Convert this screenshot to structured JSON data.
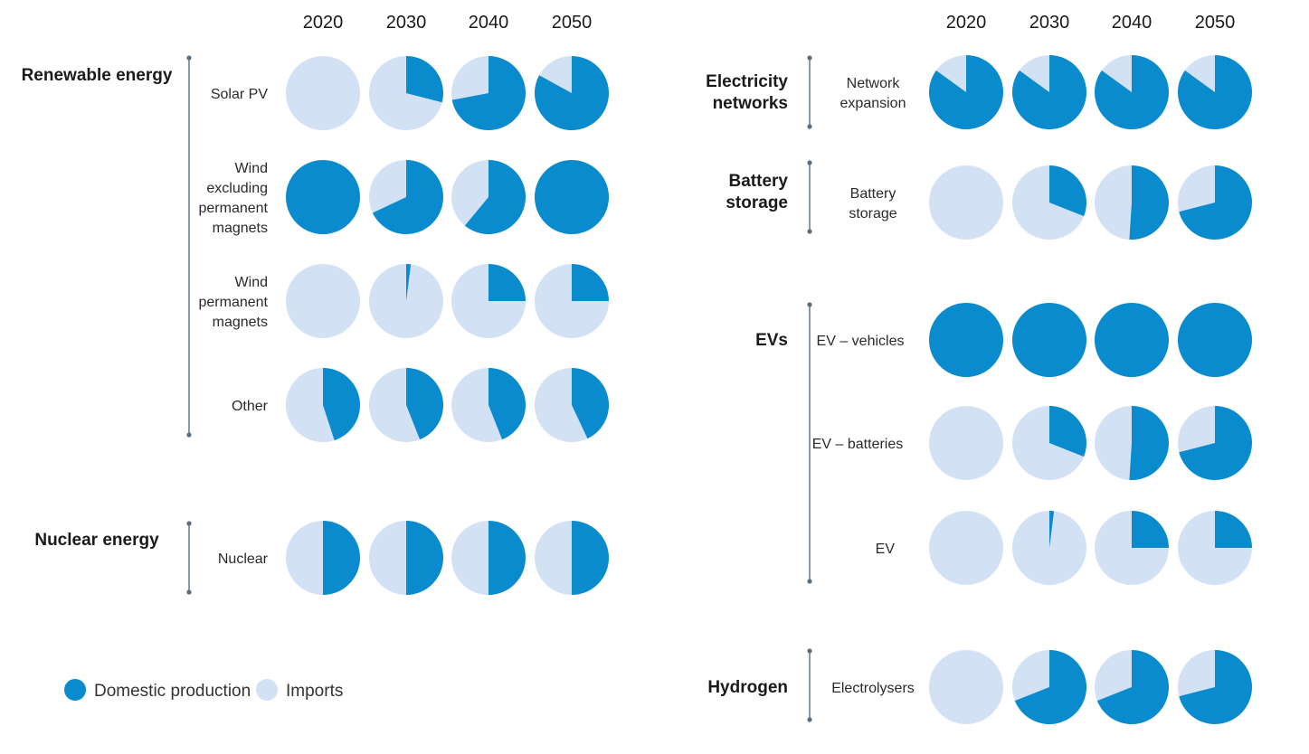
{
  "colors": {
    "domestic": "#0a8bce",
    "imports": "#d2e1f3"
  },
  "legend": [
    {
      "label": "Domestic production",
      "color_key": "domestic"
    },
    {
      "label": "Imports",
      "color_key": "imports"
    }
  ],
  "chart_data": {
    "type": "pie",
    "years": [
      "2020",
      "2030",
      "2040",
      "2050"
    ],
    "value_meaning": "domestic production share of each pie (remainder = imports)",
    "panels": [
      {
        "groups": [
          {
            "title": [
              "Renewable energy"
            ],
            "rows": [
              {
                "label": [
                  "Solar PV"
                ],
                "values": [
                  0,
                  0.29,
                  0.72,
                  0.83
                ]
              },
              {
                "label": [
                  "Wind",
                  "excluding",
                  "permanent",
                  "magnets"
                ],
                "values": [
                  1,
                  0.68,
                  0.61,
                  1
                ]
              },
              {
                "label": [
                  "Wind",
                  "permanent",
                  "magnets"
                ],
                "values": [
                  0,
                  0.02,
                  0.25,
                  0.25
                ]
              },
              {
                "label": [
                  "Other"
                ],
                "values": [
                  0.45,
                  0.44,
                  0.44,
                  0.43
                ]
              }
            ]
          },
          {
            "title": [
              "Nuclear energy"
            ],
            "rows": [
              {
                "label": [
                  "Nuclear"
                ],
                "values": [
                  0.5,
                  0.5,
                  0.5,
                  0.5
                ]
              }
            ]
          }
        ]
      },
      {
        "groups": [
          {
            "title": [
              "Electricity",
              "networks"
            ],
            "rows": [
              {
                "label": [
                  "Network",
                  "expansion"
                ],
                "values": [
                  0.85,
                  0.85,
                  0.85,
                  0.85
                ]
              }
            ]
          },
          {
            "title": [
              "Battery",
              "storage"
            ],
            "rows": [
              {
                "label": [
                  "Battery",
                  "storage"
                ],
                "values": [
                  0,
                  0.31,
                  0.51,
                  0.71
                ]
              }
            ]
          },
          {
            "title": [
              "EVs"
            ],
            "rows": [
              {
                "label": [
                  "EV – vehicles"
                ],
                "values": [
                  1,
                  1,
                  1,
                  1
                ]
              },
              {
                "label": [
                  "EV – batteries"
                ],
                "values": [
                  0,
                  0.31,
                  0.51,
                  0.71
                ]
              },
              {
                "label": [
                  "EV"
                ],
                "values": [
                  0,
                  0.02,
                  0.25,
                  0.25
                ]
              }
            ]
          },
          {
            "title": [
              "Hydrogen"
            ],
            "rows": [
              {
                "label": [
                  "Electrolysers"
                ],
                "values": [
                  0,
                  0.69,
                  0.69,
                  0.71
                ]
              }
            ]
          }
        ]
      }
    ]
  }
}
